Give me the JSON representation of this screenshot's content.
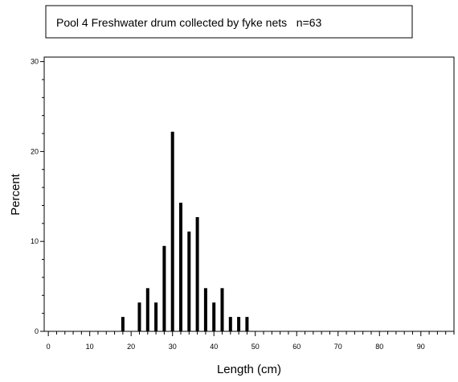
{
  "chart_data": {
    "type": "bar",
    "title": "Pool 4 Freshwater drum collected by fyke nets   n=63",
    "xlabel": "Length (cm)",
    "ylabel": "Percent",
    "xlim": [
      -1,
      98
    ],
    "ylim": [
      0,
      30.5
    ],
    "xticks": [
      0,
      10,
      20,
      30,
      40,
      50,
      60,
      70,
      80,
      90
    ],
    "yticks": [
      0,
      10,
      20,
      30
    ],
    "x_minor_step": 2,
    "y_minor_step": 2,
    "grid": false,
    "legend": "none",
    "bar_color": "#000000",
    "x": [
      18,
      22,
      24,
      26,
      28,
      30,
      32,
      34,
      36,
      38,
      40,
      42,
      44,
      46,
      48
    ],
    "values": [
      1.6,
      3.2,
      4.8,
      3.2,
      9.5,
      22.2,
      14.3,
      11.1,
      12.7,
      4.8,
      3.2,
      4.8,
      1.6,
      1.6,
      1.6
    ]
  }
}
